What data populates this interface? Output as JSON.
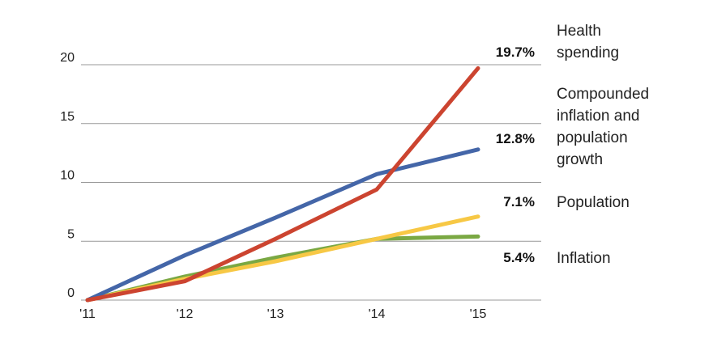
{
  "chart_data": {
    "type": "line",
    "title": "",
    "xlabel": "",
    "ylabel": "",
    "categories": [
      "'11",
      "'12",
      "'13",
      "'14",
      "'15"
    ],
    "ylim": [
      0,
      20
    ],
    "yticks": [
      "0",
      "5",
      "10",
      "15",
      "20"
    ],
    "grid": true,
    "series": [
      {
        "name": "Inflation",
        "color": "#7aa843",
        "values": [
          0,
          2.0,
          3.6,
          5.2,
          5.4
        ],
        "end_label": "5.4%"
      },
      {
        "name": "Population",
        "color": "#f7c845",
        "values": [
          0,
          1.8,
          3.3,
          5.2,
          7.1
        ],
        "end_label": "7.1%"
      },
      {
        "name": "Compounded inflation and population growth",
        "color": "#4466a8",
        "values": [
          0,
          3.8,
          7.0,
          10.7,
          12.8
        ],
        "end_label": "12.8%"
      },
      {
        "name": "Health spending",
        "color": "#cc4430",
        "values": [
          0,
          1.6,
          5.2,
          9.4,
          19.7
        ],
        "end_label": "19.7%"
      }
    ],
    "legend_placement": "right",
    "legend_lines": {
      "health": [
        "Health",
        "spending"
      ],
      "compounded": [
        "Compounded",
        "inflation and",
        "population",
        "growth"
      ],
      "population": [
        "Population"
      ],
      "inflation": [
        "Inflation"
      ]
    }
  }
}
